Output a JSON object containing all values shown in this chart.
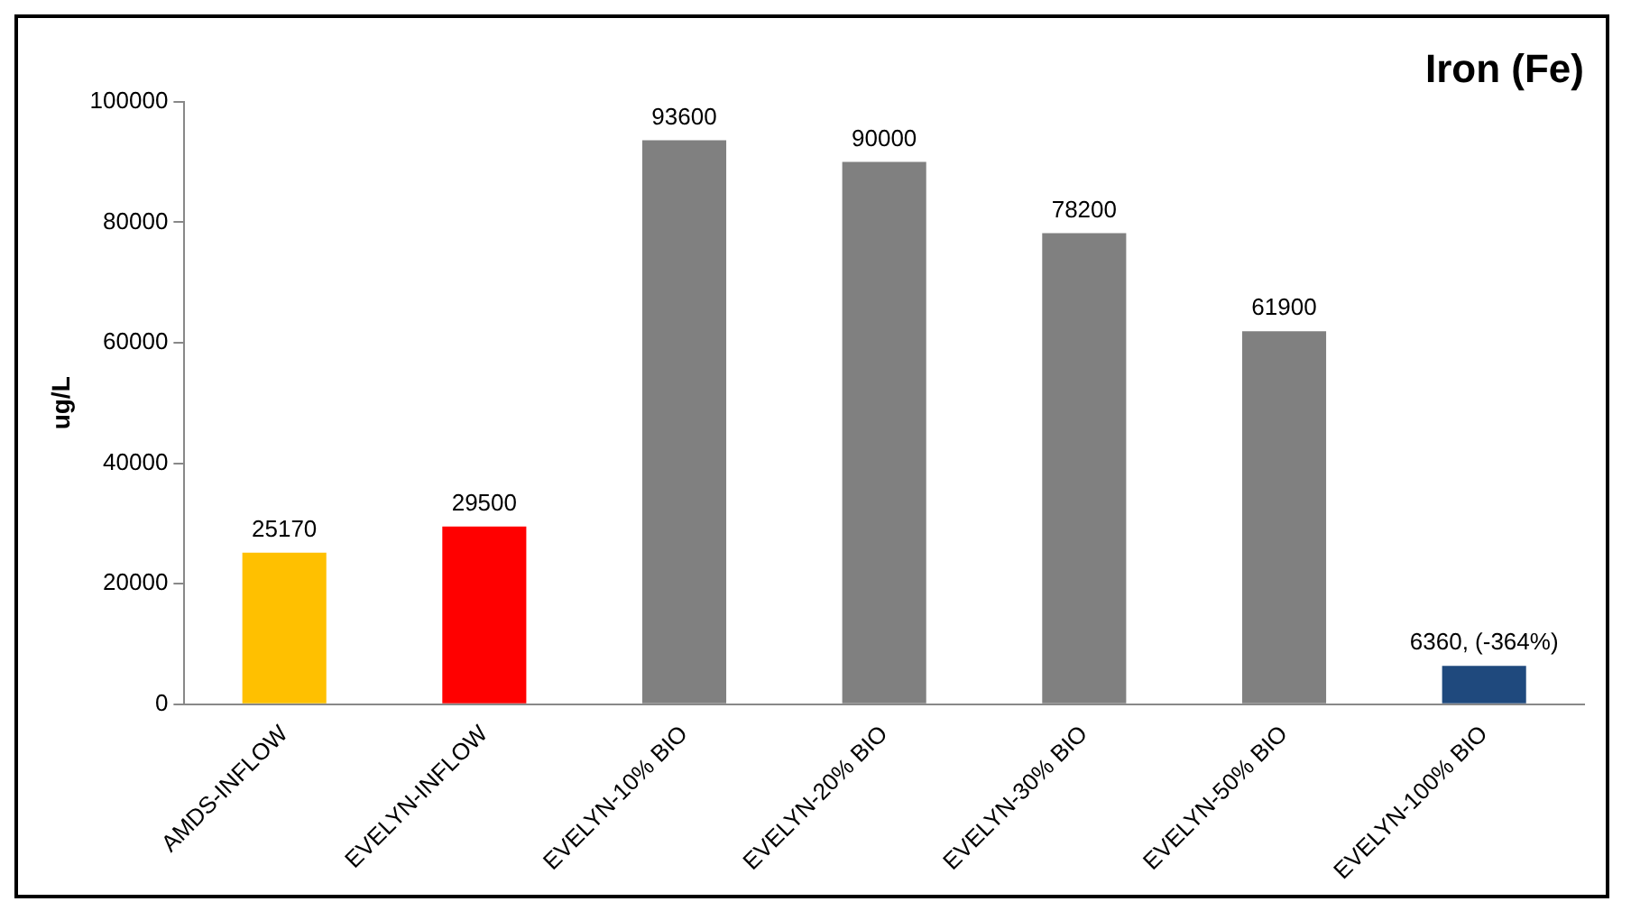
{
  "chart_data": {
    "type": "bar",
    "title": "Iron (Fe)",
    "ylabel": "ug/L",
    "categories": [
      "AMDS-INFLOW",
      "EVELYN-INFLOW",
      "EVELYN-10% BIO",
      "EVELYN-20% BIO",
      "EVELYN-30% BIO",
      "EVELYN-50% BIO",
      "EVELYN-100% BIO"
    ],
    "values": [
      25170,
      29500,
      93600,
      90000,
      78200,
      61900,
      6360
    ],
    "colors": [
      "#ffc000",
      "#ff0000",
      "#808080",
      "#808080",
      "#808080",
      "#808080",
      "#1f497d"
    ],
    "value_labels": [
      "25170",
      "29500",
      "93600",
      "90000",
      "78200",
      "61900",
      "6360, (-364%)"
    ],
    "ylim": [
      0,
      100000
    ],
    "yticks": [
      0,
      20000,
      40000,
      60000,
      80000,
      100000
    ],
    "grid": false,
    "legend": false
  }
}
